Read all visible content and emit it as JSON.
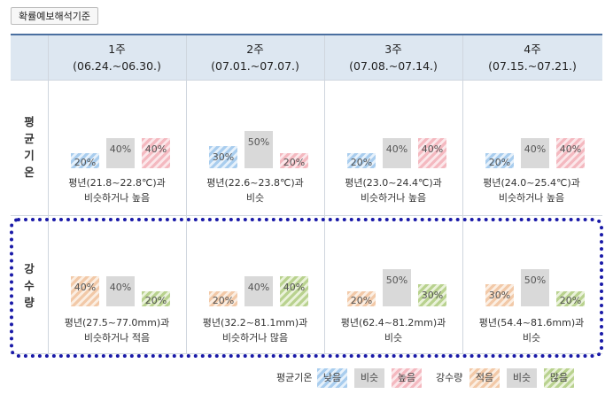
{
  "help_button": "확률예보해석기준",
  "weeks": [
    {
      "name": "1주",
      "range": "(06.24.~06.30.)"
    },
    {
      "name": "2주",
      "range": "(07.01.~07.07.)"
    },
    {
      "name": "3주",
      "range": "(07.08.~07.14.)"
    },
    {
      "name": "4주",
      "range": "(07.15.~07.21.)"
    }
  ],
  "rows": {
    "temperature": {
      "label": [
        "평",
        "균",
        "기",
        "온"
      ],
      "cells": [
        {
          "values": [
            20,
            40,
            40
          ],
          "labels": [
            "20%",
            "40%",
            "40%"
          ],
          "desc1": "평년(21.8~22.8℃)과",
          "desc2": "비슷하거나 높음"
        },
        {
          "values": [
            30,
            50,
            20
          ],
          "labels": [
            "30%",
            "50%",
            "20%"
          ],
          "desc1": "평년(22.6~23.8℃)과",
          "desc2": "비슷"
        },
        {
          "values": [
            20,
            40,
            40
          ],
          "labels": [
            "20%",
            "40%",
            "40%"
          ],
          "desc1": "평년(23.0~24.4℃)과",
          "desc2": "비슷하거나 높음"
        },
        {
          "values": [
            20,
            40,
            40
          ],
          "labels": [
            "20%",
            "40%",
            "40%"
          ],
          "desc1": "평년(24.0~25.4℃)과",
          "desc2": "비슷하거나 높음"
        }
      ]
    },
    "precipitation": {
      "label": [
        "강",
        "수",
        "량"
      ],
      "cells": [
        {
          "values": [
            40,
            40,
            20
          ],
          "labels": [
            "40%",
            "40%",
            "20%"
          ],
          "desc1": "평년(27.5~77.0mm)과",
          "desc2": "비슷하거나 적음"
        },
        {
          "values": [
            20,
            40,
            40
          ],
          "labels": [
            "20%",
            "40%",
            "40%"
          ],
          "desc1": "평년(32.2~81.1mm)과",
          "desc2": "비슷하거나 많음"
        },
        {
          "values": [
            20,
            50,
            30
          ],
          "labels": [
            "20%",
            "50%",
            "30%"
          ],
          "desc1": "평년(62.4~81.2mm)과",
          "desc2": "비슷"
        },
        {
          "values": [
            30,
            50,
            20
          ],
          "labels": [
            "30%",
            "50%",
            "20%"
          ],
          "desc1": "평년(54.4~81.6mm)과",
          "desc2": "비슷"
        }
      ]
    }
  },
  "legend": {
    "temp_title": "평균기온",
    "temp_low": "낮음",
    "temp_sim": "비슷",
    "temp_high": "높음",
    "prec_title": "강수량",
    "prec_low": "적음",
    "prec_sim": "비슷",
    "prec_high": "많음"
  },
  "colors": {
    "header_bg": "#dde7f1",
    "highlight_border": "#1a1aa8"
  }
}
